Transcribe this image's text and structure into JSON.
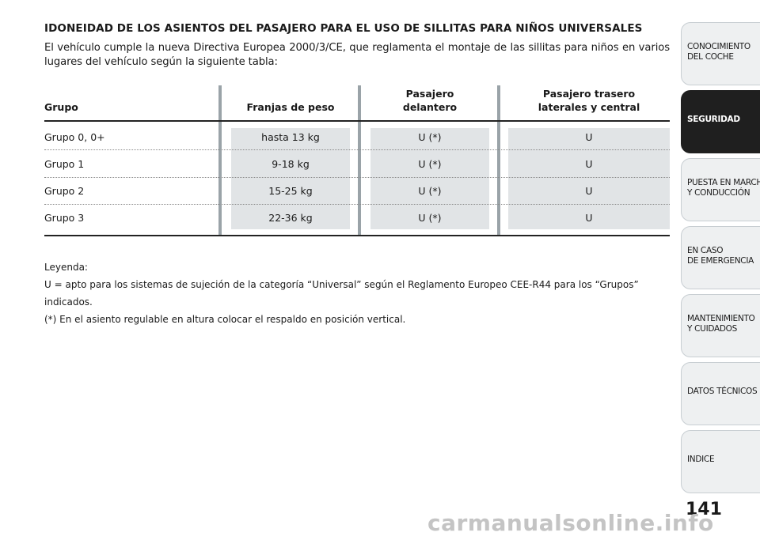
{
  "heading": "IDONEIDAD DE LOS ASIENTOS DEL PASAJERO PARA EL USO DE SILLITAS PARA NIÑOS UNIVERSALES",
  "intro": "El vehículo cumple la nueva Directiva Europea 2000/3/CE, que reglamenta el montaje de las sillitas para niños en varios lugares del vehículo según la siguiente tabla:",
  "table": {
    "headers": {
      "grupo": "Grupo",
      "peso": "Franjas de peso",
      "delantero_1": "Pasajero",
      "delantero_2": "delantero",
      "trasero_1": "Pasajero trasero",
      "trasero_2": "laterales y central"
    },
    "rows": [
      {
        "grupo": "Grupo 0, 0+",
        "peso": "hasta 13 kg",
        "delantero": "U (*)",
        "trasero": "U"
      },
      {
        "grupo": "Grupo 1",
        "peso": "9-18 kg",
        "delantero": "U (*)",
        "trasero": "U"
      },
      {
        "grupo": "Grupo 2",
        "peso": "15-25 kg",
        "delantero": "U (*)",
        "trasero": "U"
      },
      {
        "grupo": "Grupo 3",
        "peso": "22-36 kg",
        "delantero": "U (*)",
        "trasero": "U"
      }
    ]
  },
  "legend": {
    "title": "Leyenda:",
    "line1": "U = apto para los sistemas de sujeción de la categoría “Universal” según el Reglamento Europeo CEE-R44 para los “Grupos” indicados.",
    "line2": "(*) En el asiento regulable en altura colocar el respaldo en posición vertical."
  },
  "tabs": [
    {
      "lines": [
        "CONOCIMIENTO",
        "DEL COCHE"
      ],
      "active": false
    },
    {
      "lines": [
        "SEGURIDAD"
      ],
      "active": true
    },
    {
      "lines": [
        "PUESTA EN MARCHA",
        "Y CONDUCCIÓN"
      ],
      "active": false
    },
    {
      "lines": [
        "EN CASO",
        "DE EMERGENCIA"
      ],
      "active": false
    },
    {
      "lines": [
        "MANTENIMIENTO",
        "Y CUIDADOS"
      ],
      "active": false
    },
    {
      "lines": [
        "DATOS TÉCNICOS"
      ],
      "active": false
    },
    {
      "lines": [
        "INDICE"
      ],
      "active": false
    }
  ],
  "page_number": "141",
  "watermark": "carmanualsonline.info"
}
